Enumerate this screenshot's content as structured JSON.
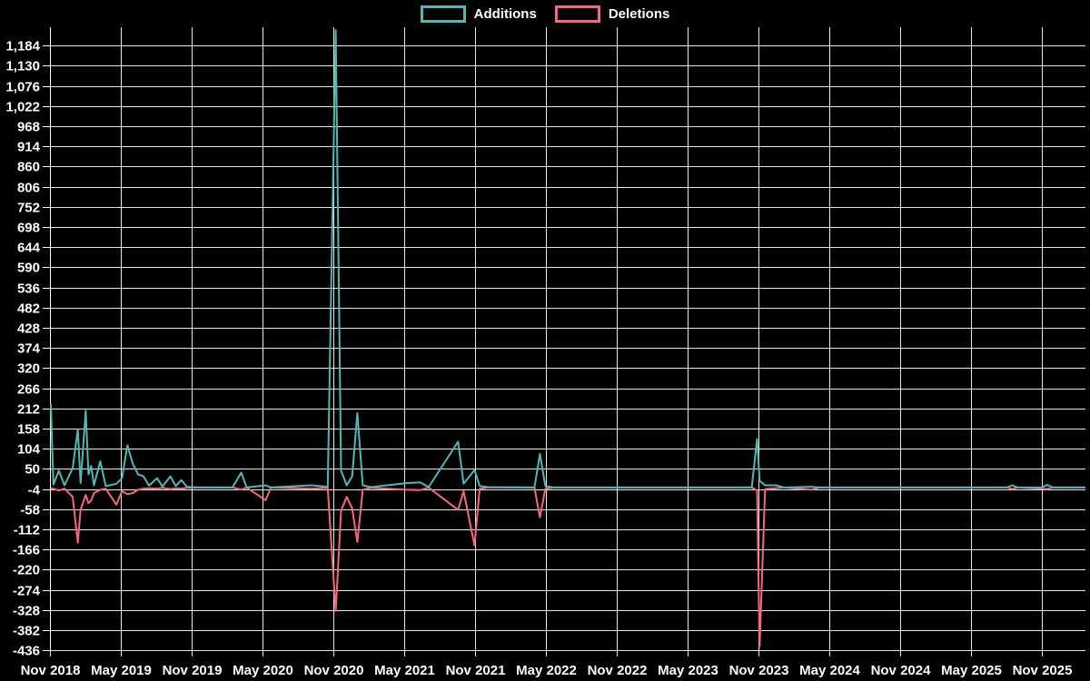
{
  "legend": {
    "items": [
      {
        "label": "Additions",
        "color": "#4FB8B2"
      },
      {
        "label": "Deletions",
        "color": "#F8657E"
      }
    ]
  },
  "colors": {
    "background": "#000000",
    "grid": "#FFFFFF",
    "text": "#FFFFFF",
    "additions": "#4FB8B2",
    "deletions": "#F8657E"
  },
  "chart_data": {
    "type": "line",
    "title": "",
    "xlabel": "",
    "ylabel": "",
    "legend_position": "top-center",
    "grid": true,
    "ylim": [
      -438,
      1233
    ],
    "y_tick_step": 54,
    "y_tick_labels": [
      "1,184",
      "1,130",
      "1,076",
      "1,022",
      "968",
      "914",
      "860",
      "806",
      "752",
      "698",
      "644",
      "590",
      "536",
      "482",
      "428",
      "374",
      "320",
      "266",
      "212",
      "158",
      "104",
      "50",
      "-4",
      "-58",
      "-112",
      "-166",
      "-220",
      "-274",
      "-328",
      "-382",
      "-436"
    ],
    "x_tick_labels": [
      "Nov 2018",
      "May 2019",
      "Nov 2019",
      "May 2020",
      "Nov 2020",
      "May 2021",
      "Nov 2021",
      "May 2022",
      "Nov 2022",
      "May 2023",
      "Nov 2023",
      "May 2024",
      "Nov 2024",
      "May 2025",
      "Nov 2025"
    ],
    "dates": [
      "2018-11-03",
      "2018-11-10",
      "2018-11-24",
      "2018-12-08",
      "2018-12-29",
      "2019-01-12",
      "2019-01-19",
      "2019-02-02",
      "2019-02-09",
      "2019-02-16",
      "2019-02-23",
      "2019-03-09",
      "2019-03-23",
      "2019-04-20",
      "2019-05-04",
      "2019-05-18",
      "2019-06-01",
      "2019-06-15",
      "2019-06-29",
      "2019-07-13",
      "2019-08-03",
      "2019-08-17",
      "2019-09-07",
      "2019-09-21",
      "2019-10-05",
      "2019-10-19",
      "2019-11-16",
      "2020-02-15",
      "2020-03-07",
      "2020-03-21",
      "2020-05-09",
      "2020-05-23",
      "2020-09-05",
      "2020-10-17",
      "2020-11-07",
      "2020-11-21",
      "2020-12-05",
      "2020-12-19",
      "2021-01-02",
      "2021-01-16",
      "2021-02-06",
      "2021-05-08",
      "2021-06-12",
      "2021-07-03",
      "2021-09-18",
      "2021-10-02",
      "2021-10-30",
      "2021-11-13",
      "2021-12-04",
      "2022-04-02",
      "2022-04-16",
      "2022-04-30",
      "2022-05-21",
      "2023-10-14",
      "2023-10-28",
      "2023-11-04",
      "2023-11-18",
      "2023-12-16",
      "2024-01-06",
      "2024-03-16",
      "2024-04-06",
      "2025-08-02",
      "2025-08-16",
      "2025-08-30",
      "2025-11-01",
      "2025-11-15",
      "2025-11-29"
    ],
    "series": [
      {
        "name": "Additions",
        "values": [
          225,
          8,
          45,
          6,
          52,
          155,
          12,
          206,
          35,
          58,
          6,
          70,
          4,
          10,
          25,
          113,
          65,
          35,
          30,
          5,
          25,
          3,
          30,
          4,
          20,
          2,
          0,
          0,
          40,
          0,
          6,
          0,
          6,
          2,
          1225,
          45,
          6,
          30,
          199,
          6,
          1,
          12,
          14,
          1,
          123,
          10,
          47,
          4,
          1,
          0,
          90,
          4,
          0,
          0,
          130,
          18,
          6,
          6,
          0,
          2,
          0,
          0,
          6,
          0,
          0,
          7,
          0
        ]
      },
      {
        "name": "Deletions",
        "values": [
          -2,
          -3,
          -8,
          -3,
          -25,
          -148,
          -60,
          -20,
          -42,
          -35,
          -15,
          -6,
          -3,
          -46,
          -10,
          -18,
          -15,
          -6,
          -3,
          -2,
          -3,
          -1,
          -4,
          -2,
          -3,
          -1,
          0,
          0,
          -6,
          0,
          -34,
          0,
          -3,
          -1,
          -331,
          -62,
          -25,
          -56,
          -146,
          -6,
          -1,
          -6,
          -7,
          0,
          -60,
          -10,
          -155,
          -3,
          0,
          0,
          -80,
          -3,
          0,
          0,
          -8,
          -425,
          -4,
          -2,
          0,
          -6,
          0,
          0,
          -4,
          0,
          -3,
          -4,
          0
        ]
      }
    ]
  }
}
